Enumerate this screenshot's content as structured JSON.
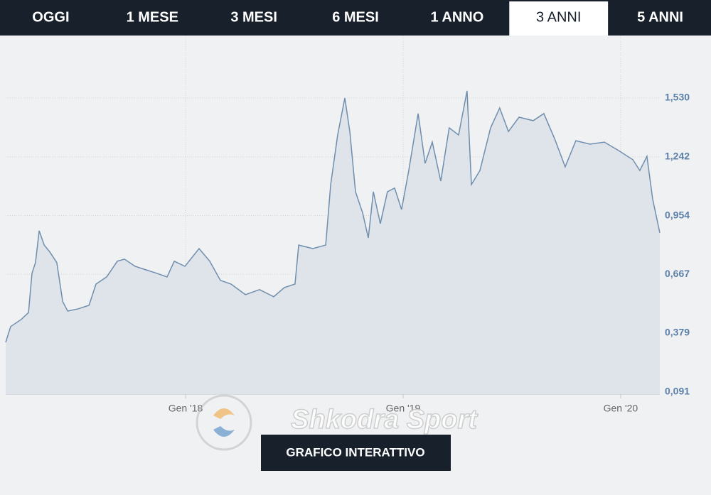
{
  "tabs": [
    "OGGI",
    "1 MESE",
    "3 MESI",
    "6 MESI",
    "1 ANNO",
    "3 ANNI",
    "5 ANNI"
  ],
  "active_tab": 5,
  "watermark": "Shkodra Sport",
  "button": "GRAFICO INTERATTIVO",
  "chart_data": {
    "type": "area",
    "x": [
      2017.173,
      2017.196,
      2017.245,
      2017.278,
      2017.294,
      2017.31,
      2017.327,
      2017.35,
      2017.376,
      2017.408,
      2017.435,
      2017.458,
      2017.507,
      2017.556,
      2017.588,
      2017.637,
      2017.686,
      2017.719,
      2017.768,
      2017.817,
      2017.866,
      2017.915,
      2017.948,
      2017.997,
      2018.062,
      2018.111,
      2018.16,
      2018.209,
      2018.275,
      2018.34,
      2018.405,
      2018.454,
      2018.503,
      2018.52,
      2018.585,
      2018.644,
      2018.667,
      2018.699,
      2018.732,
      2018.755,
      2018.781,
      2018.814,
      2018.84,
      2018.863,
      2018.895,
      2018.928,
      2018.961,
      2018.993,
      2019.026,
      2019.069,
      2019.101,
      2019.134,
      2019.173,
      2019.212,
      2019.255,
      2019.294,
      2019.314,
      2019.353,
      2019.402,
      2019.444,
      2019.484,
      2019.533,
      2019.598,
      2019.647,
      2019.696,
      2019.745,
      2019.794,
      2019.859,
      2019.925,
      2019.99,
      2020.056,
      2020.088,
      2020.121,
      2020.147,
      2020.18
    ],
    "values": [
      0.334,
      0.411,
      0.446,
      0.48,
      0.672,
      0.724,
      0.88,
      0.81,
      0.776,
      0.724,
      0.533,
      0.487,
      0.498,
      0.515,
      0.619,
      0.654,
      0.731,
      0.741,
      0.706,
      0.689,
      0.672,
      0.654,
      0.731,
      0.706,
      0.793,
      0.731,
      0.637,
      0.619,
      0.567,
      0.592,
      0.557,
      0.602,
      0.619,
      0.81,
      0.793,
      0.81,
      1.106,
      1.349,
      1.53,
      1.366,
      1.071,
      0.967,
      0.845,
      1.071,
      0.915,
      1.071,
      1.089,
      0.984,
      1.175,
      1.454,
      1.21,
      1.314,
      1.123,
      1.384,
      1.349,
      1.565,
      1.106,
      1.175,
      1.384,
      1.481,
      1.366,
      1.436,
      1.419,
      1.454,
      1.332,
      1.193,
      1.321,
      1.304,
      1.314,
      1.273,
      1.228,
      1.175,
      1.245,
      1.036,
      0.87
    ],
    "color": "#6f8eae",
    "fill": "#dfe4ea",
    "xlim": [
      2017.173,
      2020.18
    ],
    "xticks": [
      {
        "value": 2018,
        "label": "Gen '18"
      },
      {
        "value": 2019,
        "label": "Gen '19"
      },
      {
        "value": 2020,
        "label": "Gen '20"
      }
    ],
    "ylim": [
      0.08,
      1.836
    ],
    "yticks": [
      {
        "value": 0.091,
        "label": "0,091"
      },
      {
        "value": 0.379,
        "label": "0,379"
      },
      {
        "value": 0.667,
        "label": "0,667"
      },
      {
        "value": 0.954,
        "label": "0,954"
      },
      {
        "value": 1.242,
        "label": "1,242"
      },
      {
        "value": 1.53,
        "label": "1,530"
      }
    ],
    "grid": true
  }
}
